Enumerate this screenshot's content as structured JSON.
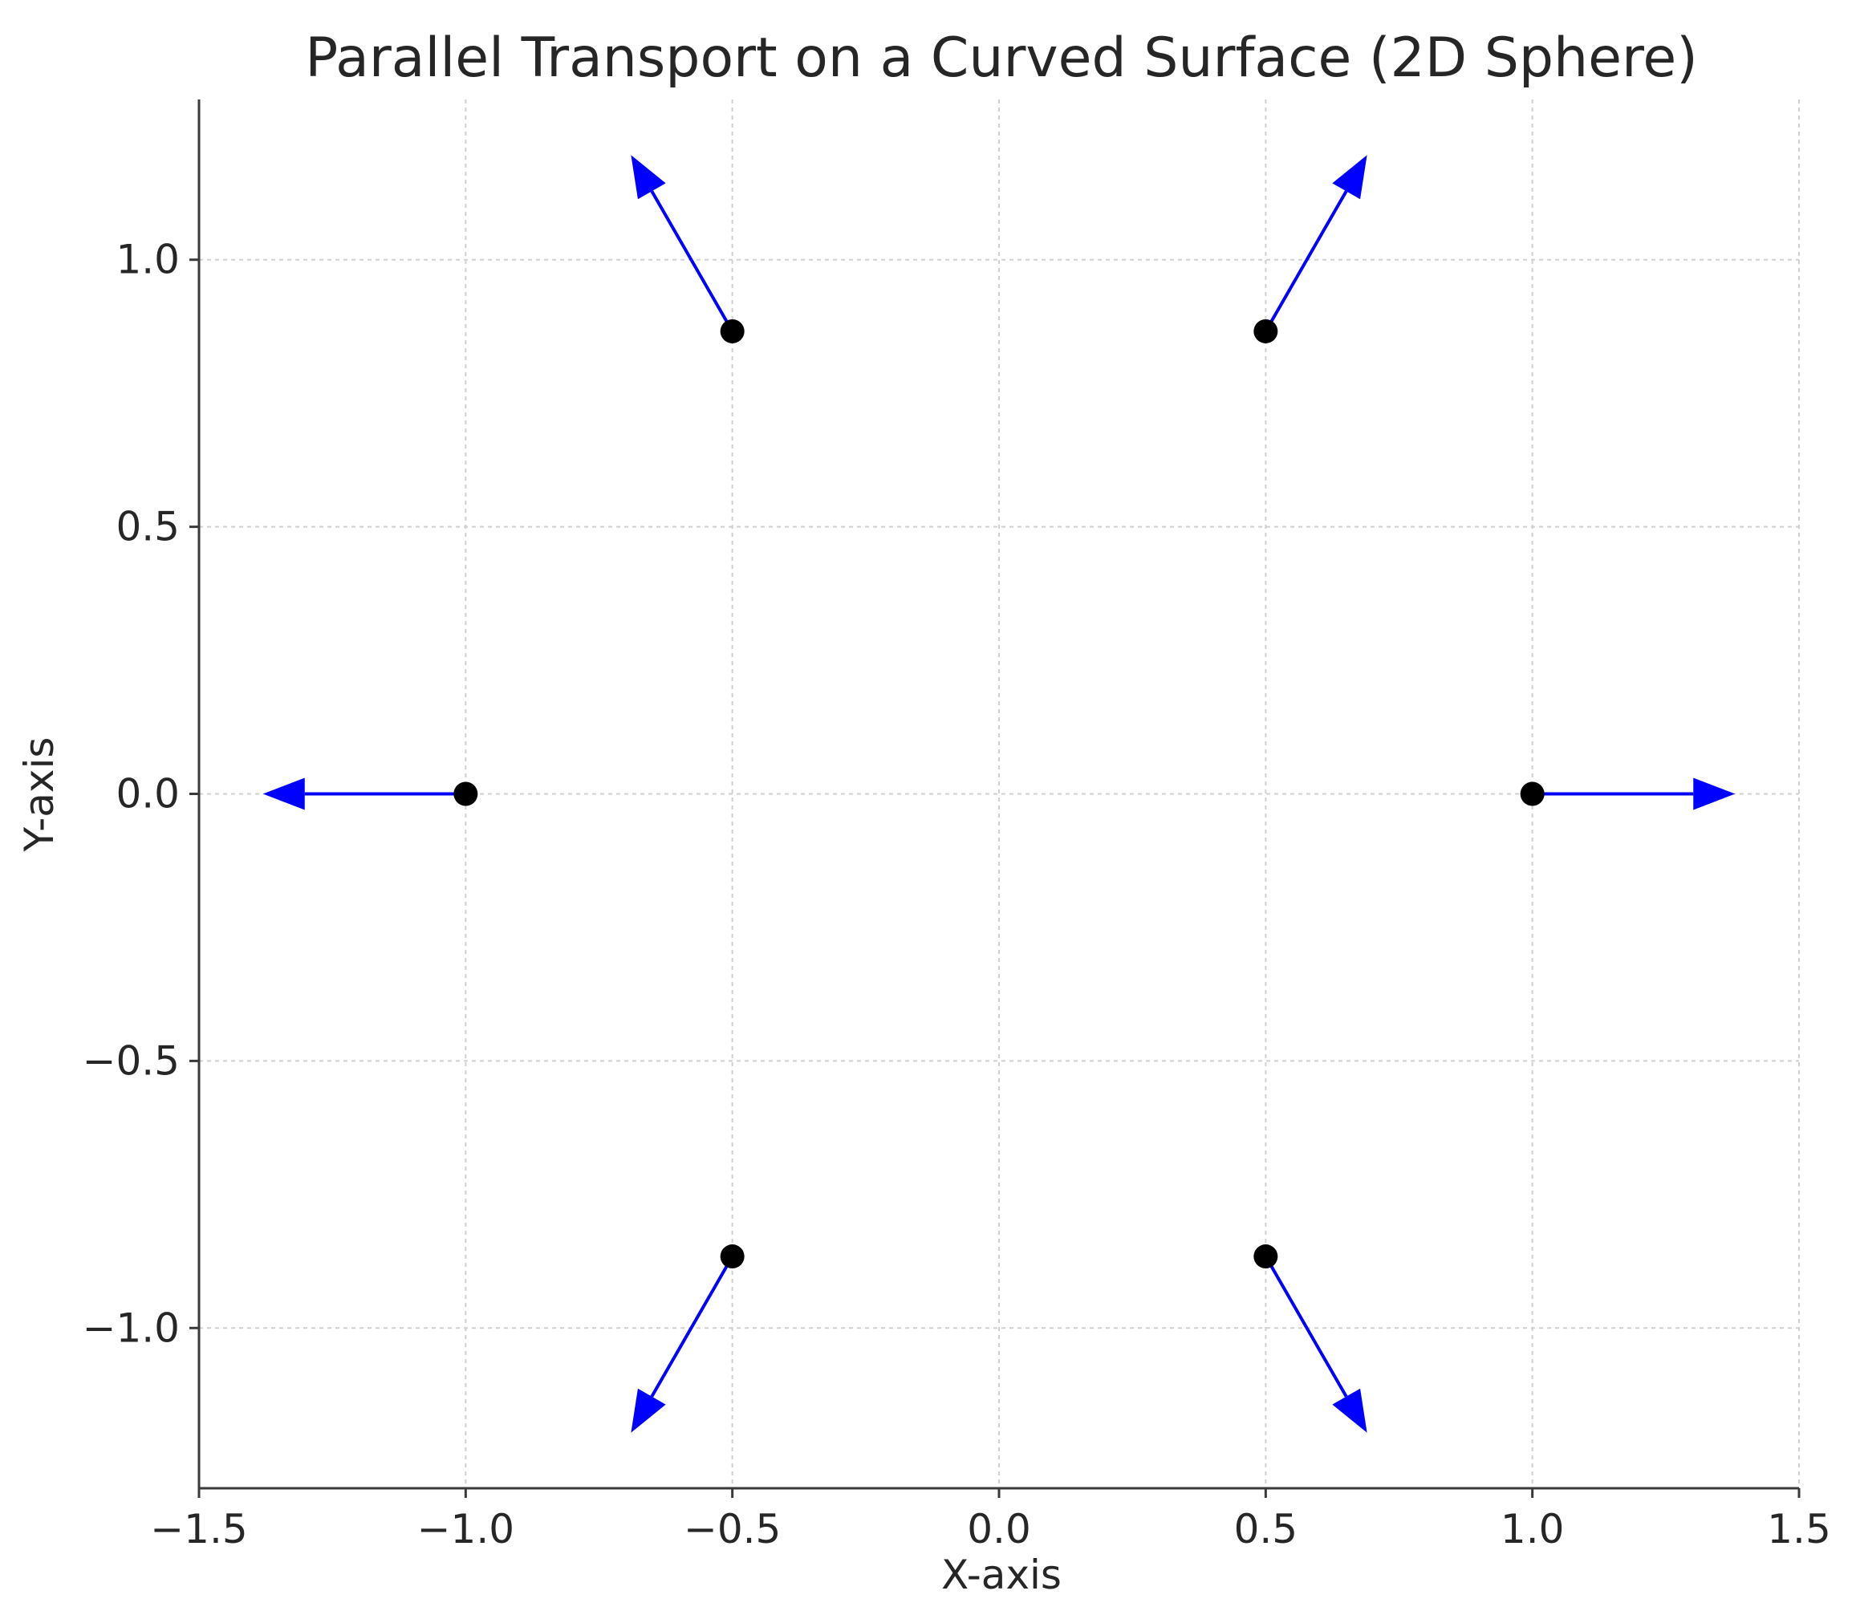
{
  "chart_data": {
    "type": "scatter",
    "title": "Parallel Transport on a Curved Surface (2D Sphere)",
    "xlabel": "X-axis",
    "ylabel": "Y-axis",
    "xlim": [
      -1.5,
      1.5
    ],
    "ylim": [
      -1.3,
      1.3
    ],
    "xticks": [
      -1.5,
      -1.0,
      -0.5,
      0.0,
      0.5,
      1.0,
      1.5
    ],
    "xtick_labels": [
      "−1.5",
      "−1.0",
      "−0.5",
      "0.0",
      "0.5",
      "1.0",
      "1.5"
    ],
    "yticks": [
      -1.0,
      -0.5,
      0.0,
      0.5,
      1.0
    ],
    "ytick_labels": [
      "−1.0",
      "−0.5",
      "0.0",
      "0.5",
      "1.0"
    ],
    "grid": true,
    "point_color": "#000000",
    "vector_color": "#0000ff",
    "points": [
      {
        "x": 1.0,
        "y": 0.0,
        "u": 0.38,
        "v": 0.0
      },
      {
        "x": 0.5,
        "y": 0.866,
        "u": 0.19,
        "v": 0.33
      },
      {
        "x": -0.5,
        "y": 0.866,
        "u": -0.19,
        "v": 0.33
      },
      {
        "x": -1.0,
        "y": 0.0,
        "u": -0.38,
        "v": 0.0
      },
      {
        "x": -0.5,
        "y": -0.866,
        "u": -0.19,
        "v": -0.33
      },
      {
        "x": 0.5,
        "y": -0.866,
        "u": 0.19,
        "v": -0.33
      }
    ]
  }
}
